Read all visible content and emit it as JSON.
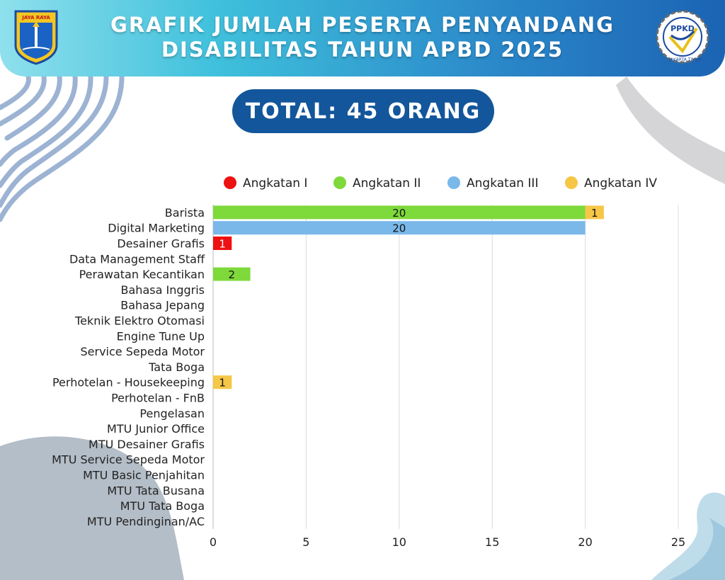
{
  "header": {
    "title_line1": "GRAFIK JUMLAH PESERTA PENYANDANG",
    "title_line2": "DISABILITAS TAHUN APBD 2025",
    "logo_left_text": "JAYA RAYA",
    "logo_right_text": "PPKD",
    "logo_right_subtext": "JAKARTA TIMUR"
  },
  "total_label": "TOTAL: 45 ORANG",
  "colors": {
    "header_start": "#8fe0ec",
    "header_end": "#1b63b3",
    "pill": "#13569b",
    "angkatan_1": "#ee1111",
    "angkatan_2": "#7ed93b",
    "angkatan_3": "#7ab8ea",
    "angkatan_4": "#f6c646"
  },
  "chart_data": {
    "type": "bar",
    "orientation": "horizontal",
    "stacked": true,
    "title": "GRAFIK JUMLAH PESERTA PENYANDANG DISABILITAS TAHUN APBD 2025",
    "xlim": [
      0,
      25
    ],
    "xticks": [
      0,
      5,
      10,
      15,
      20,
      25
    ],
    "grid": true,
    "legend_position": "top",
    "categories": [
      "Barista",
      "Digital Marketing",
      "Desainer Grafis",
      "Data Management Staff",
      "Perawatan Kecantikan",
      "Bahasa Inggris",
      "Bahasa Jepang",
      "Teknik Elektro Otomasi",
      "Engine Tune Up",
      "Service Sepeda Motor",
      "Tata Boga",
      "Perhotelan - Housekeeping",
      "Perhotelan - FnB",
      "Pengelasan",
      "MTU Junior Office",
      "MTU Desainer Grafis",
      "MTU Service Sepeda Motor",
      "MTU Basic Penjahitan",
      "MTU Tata Busana",
      "MTU Tata Boga",
      "MTU Pendinginan/AC"
    ],
    "series": [
      {
        "name": "Angkatan I",
        "color": "#ee1111",
        "values": [
          0,
          0,
          1,
          0,
          0,
          0,
          0,
          0,
          0,
          0,
          0,
          0,
          0,
          0,
          0,
          0,
          0,
          0,
          0,
          0,
          0
        ]
      },
      {
        "name": "Angkatan II",
        "color": "#7ed93b",
        "values": [
          20,
          0,
          0,
          0,
          2,
          0,
          0,
          0,
          0,
          0,
          0,
          0,
          0,
          0,
          0,
          0,
          0,
          0,
          0,
          0,
          0
        ]
      },
      {
        "name": "Angkatan III",
        "color": "#7ab8ea",
        "values": [
          0,
          20,
          0,
          0,
          0,
          0,
          0,
          0,
          0,
          0,
          0,
          0,
          0,
          0,
          0,
          0,
          0,
          0,
          0,
          0,
          0
        ]
      },
      {
        "name": "Angkatan IV",
        "color": "#f6c646",
        "values": [
          1,
          0,
          0,
          0,
          0,
          0,
          0,
          0,
          0,
          0,
          0,
          1,
          0,
          0,
          0,
          0,
          0,
          0,
          0,
          0,
          0
        ]
      }
    ]
  }
}
